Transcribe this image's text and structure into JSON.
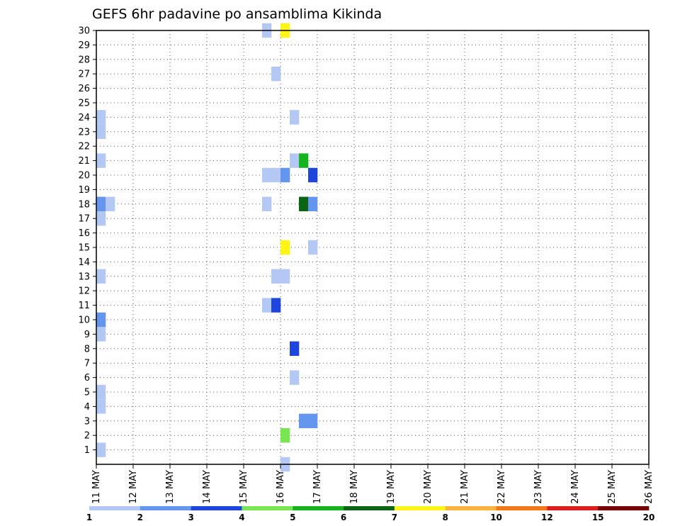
{
  "chart_data": {
    "type": "heatmap",
    "title": "GEFS 6hr padavine po ansamblima Kikinda",
    "xlabel": "",
    "ylabel": "",
    "x_range": [
      "11 MAY 00Z",
      "26 MAY 00Z"
    ],
    "y_range": [
      0,
      30
    ],
    "grid": "dotted",
    "x_tick_labels": [
      "11 MAY",
      "12 MAY",
      "13 MAY",
      "14 MAY",
      "15 MAY",
      "16 MAY",
      "17 MAY",
      "18 MAY",
      "19 MAY",
      "20 MAY",
      "21 MAY",
      "22 MAY",
      "23 MAY",
      "24 MAY",
      "25 MAY",
      "26 MAY"
    ],
    "y_tick_labels": [
      "1",
      "2",
      "3",
      "4",
      "5",
      "6",
      "7",
      "8",
      "9",
      "10",
      "11",
      "12",
      "13",
      "14",
      "15",
      "16",
      "17",
      "18",
      "19",
      "20",
      "21",
      "22",
      "23",
      "24",
      "25",
      "26",
      "27",
      "28",
      "29",
      "30"
    ],
    "colorbar": {
      "colors": [
        "#b4c8f5",
        "#6496f0",
        "#1e46dc",
        "#78e650",
        "#14b41e",
        "#0a6414",
        "#fff514",
        "#fab43c",
        "#f57814",
        "#dc1e1e",
        "#780000"
      ],
      "labels": [
        "1",
        "2",
        "3",
        "4",
        "5",
        "6",
        "7",
        "8",
        "10",
        "12",
        "15",
        "20"
      ]
    },
    "data": [
      {
        "day": "11 MAY",
        "step": 1,
        "member": 1,
        "level": 0
      },
      {
        "day": "11 MAY",
        "step": 1,
        "member": 4,
        "level": 0
      },
      {
        "day": "11 MAY",
        "step": 1,
        "member": 5,
        "level": 0
      },
      {
        "day": "11 MAY",
        "step": 1,
        "member": 9,
        "level": 0
      },
      {
        "day": "11 MAY",
        "step": 1,
        "member": 10,
        "level": 1
      },
      {
        "day": "11 MAY",
        "step": 1,
        "member": 13,
        "level": 0
      },
      {
        "day": "11 MAY",
        "step": 1,
        "member": 17,
        "level": 0
      },
      {
        "day": "11 MAY",
        "step": 1,
        "member": 18,
        "level": 1
      },
      {
        "day": "11 MAY",
        "step": 2,
        "member": 18,
        "level": 0
      },
      {
        "day": "11 MAY",
        "step": 1,
        "member": 21,
        "level": 0
      },
      {
        "day": "11 MAY",
        "step": 1,
        "member": 23,
        "level": 0
      },
      {
        "day": "11 MAY",
        "step": 1,
        "member": 24,
        "level": 0
      },
      {
        "day": "15 MAY",
        "step": 3,
        "member": 11,
        "level": 0
      },
      {
        "day": "15 MAY",
        "step": 3,
        "member": 18,
        "level": 0
      },
      {
        "day": "15 MAY",
        "step": 3,
        "member": 20,
        "level": 0
      },
      {
        "day": "15 MAY",
        "step": 3,
        "member": 30,
        "level": 0
      },
      {
        "day": "15 MAY",
        "step": 4,
        "member": 11,
        "level": 2
      },
      {
        "day": "15 MAY",
        "step": 4,
        "member": 13,
        "level": 0
      },
      {
        "day": "15 MAY",
        "step": 4,
        "member": 20,
        "level": 0
      },
      {
        "day": "15 MAY",
        "step": 4,
        "member": 27,
        "level": 0
      },
      {
        "day": "16 MAY",
        "step": 1,
        "member": 0,
        "level": 0
      },
      {
        "day": "16 MAY",
        "step": 1,
        "member": 2,
        "level": 3
      },
      {
        "day": "16 MAY",
        "step": 1,
        "member": 13,
        "level": 0
      },
      {
        "day": "16 MAY",
        "step": 1,
        "member": 15,
        "level": 6
      },
      {
        "day": "16 MAY",
        "step": 1,
        "member": 20,
        "level": 1
      },
      {
        "day": "16 MAY",
        "step": 1,
        "member": 30,
        "level": 6
      },
      {
        "day": "16 MAY",
        "step": 2,
        "member": 6,
        "level": 0
      },
      {
        "day": "16 MAY",
        "step": 2,
        "member": 8,
        "level": 2
      },
      {
        "day": "16 MAY",
        "step": 2,
        "member": 24,
        "level": 0
      },
      {
        "day": "16 MAY",
        "step": 2,
        "member": 21,
        "level": 0
      },
      {
        "day": "16 MAY",
        "step": 3,
        "member": 3,
        "level": 1
      },
      {
        "day": "16 MAY",
        "step": 3,
        "member": 21,
        "level": 4
      },
      {
        "day": "16 MAY",
        "step": 3,
        "member": 18,
        "level": 5
      },
      {
        "day": "16 MAY",
        "step": 4,
        "member": 3,
        "level": 1
      },
      {
        "day": "16 MAY",
        "step": 4,
        "member": 18,
        "level": 1
      },
      {
        "day": "16 MAY",
        "step": 4,
        "member": 20,
        "level": 2
      },
      {
        "day": "16 MAY",
        "step": 4,
        "member": 15,
        "level": 0
      }
    ]
  }
}
